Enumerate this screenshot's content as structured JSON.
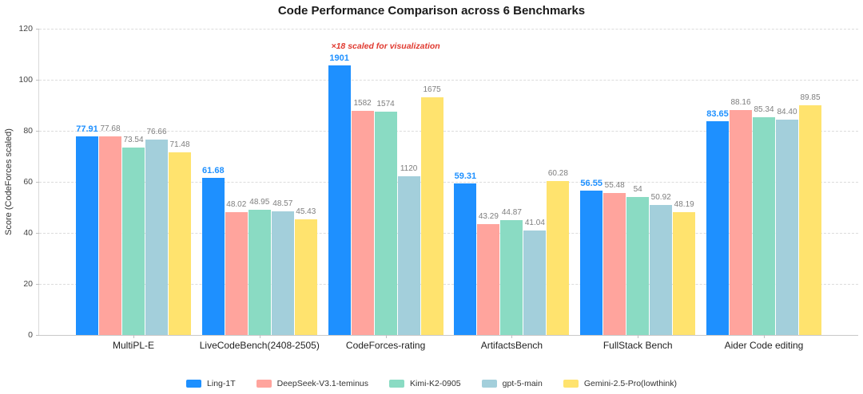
{
  "chart_data": {
    "type": "bar",
    "title": "Code Performance Comparison across 6 Benchmarks",
    "ylabel": "Score (CodeForces scaled)",
    "ylim": [
      0,
      120
    ],
    "yticks": [
      0,
      20,
      40,
      60,
      80,
      100,
      120
    ],
    "grid": "dashed-horizontal",
    "legend_position": "bottom",
    "categories": [
      "MultiPL-E",
      "LiveCodeBench(2408-2505)",
      "CodeForces-rating",
      "ArtifactsBench",
      "FullStack Bench",
      "Aider Code editing"
    ],
    "series": [
      {
        "name": "Ling-1T",
        "color": "#1E90FF",
        "emphasis": true,
        "values": [
          77.91,
          61.68,
          1901,
          59.31,
          56.55,
          83.65
        ],
        "labels": [
          "77.91",
          "61.68",
          "1901",
          "59.31",
          "56.55",
          "83.65"
        ]
      },
      {
        "name": "DeepSeek-V3.1-teminus",
        "color": "#FFA49D",
        "emphasis": false,
        "values": [
          77.68,
          48.02,
          1582,
          43.29,
          55.48,
          88.16
        ],
        "labels": [
          "77.68",
          "48.02",
          "1582",
          "43.29",
          "55.48",
          "88.16"
        ]
      },
      {
        "name": "Kimi-K2-0905",
        "color": "#8ADBC3",
        "emphasis": false,
        "values": [
          73.54,
          48.95,
          1574,
          44.87,
          54,
          85.34
        ],
        "labels": [
          "73.54",
          "48.95",
          "1574",
          "44.87",
          "54",
          "85.34"
        ]
      },
      {
        "name": "gpt-5-main",
        "color": "#A3CFDB",
        "emphasis": false,
        "values": [
          76.66,
          48.57,
          1120,
          41.04,
          50.92,
          84.4
        ],
        "labels": [
          "76.66",
          "48.57",
          "1120",
          "41.04",
          "50.92",
          "84.40"
        ]
      },
      {
        "name": "Gemini-2.5-Pro(lowthink)",
        "color": "#FFE36E",
        "emphasis": false,
        "values": [
          71.48,
          45.43,
          1675,
          60.28,
          48.19,
          89.85
        ],
        "labels": [
          "71.48",
          "45.43",
          "1675",
          "60.28",
          "48.19",
          "89.85"
        ]
      }
    ],
    "scaled_category": {
      "index": 2,
      "factor": 18,
      "note": "×18 scaled for visualization",
      "note_color": "#E0392F"
    },
    "label_colors": {
      "default": "#7E7E7E",
      "emphasis": "#1E90FF"
    }
  }
}
